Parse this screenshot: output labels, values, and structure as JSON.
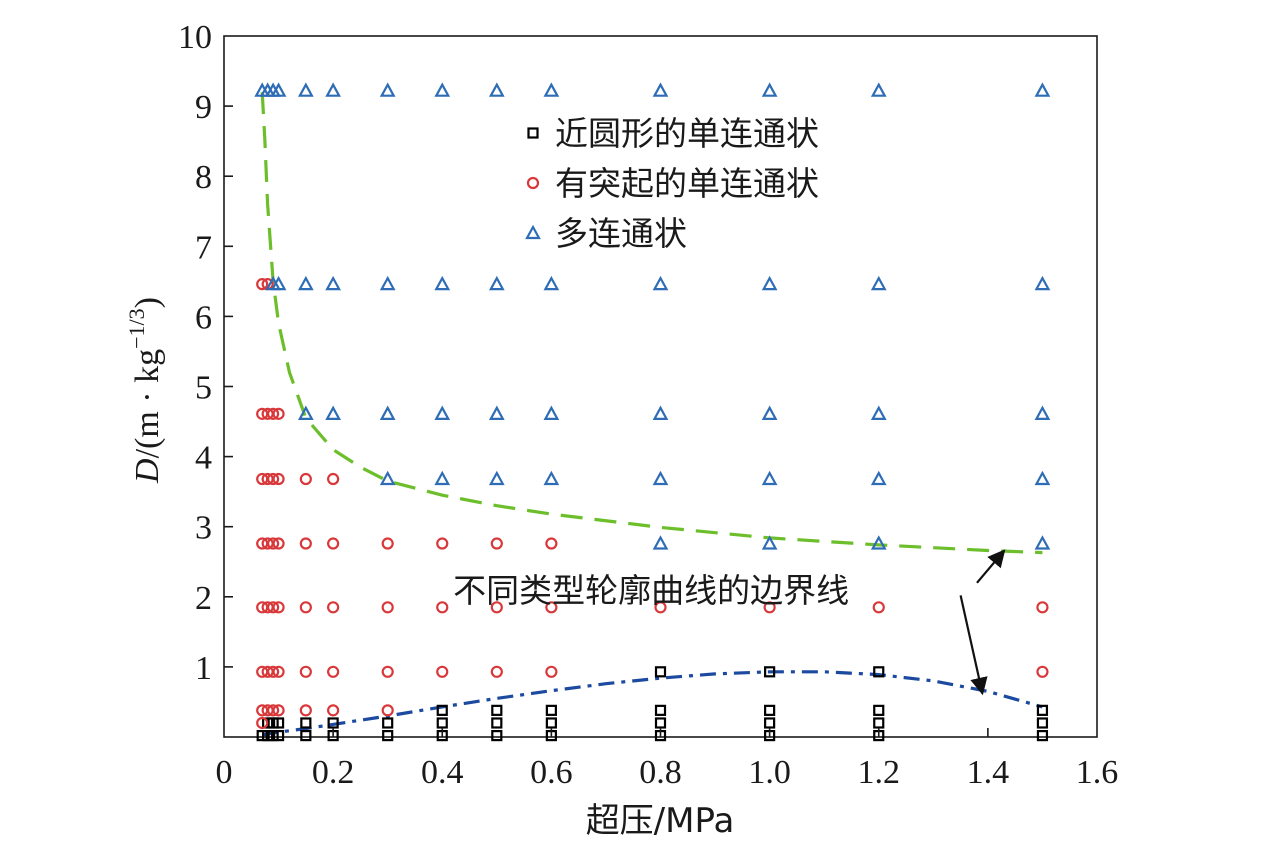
{
  "chart_data": {
    "type": "scatter",
    "xlabel": "超压/MPa",
    "ylabel": {
      "prefix": "D",
      "unit": "/(m · kg",
      "exponent": "−1/3",
      "suffix": ")"
    },
    "xlim": [
      0,
      1.6
    ],
    "ylim": [
      0,
      10
    ],
    "xticks": [
      "0",
      "0.2",
      "0.4",
      "0.6",
      "0.8",
      "1.0",
      "1.2",
      "1.4",
      "1.6"
    ],
    "xtick_values": [
      0,
      0.2,
      0.4,
      0.6,
      0.8,
      1.0,
      1.2,
      1.4,
      1.6
    ],
    "yticks": [
      "1",
      "2",
      "3",
      "4",
      "5",
      "6",
      "7",
      "8",
      "9",
      "10"
    ],
    "ytick_values": [
      1,
      2,
      3,
      4,
      5,
      6,
      7,
      8,
      9,
      10
    ],
    "grid": false,
    "legend_position": "top-center",
    "series": [
      {
        "name": "近圆形的单连通状",
        "marker": "square",
        "color": "#000000",
        "points": [
          [
            0.07,
            0.02
          ],
          [
            0.08,
            0.02
          ],
          [
            0.09,
            0.02
          ],
          [
            0.1,
            0.02
          ],
          [
            0.15,
            0.02
          ],
          [
            0.2,
            0.02
          ],
          [
            0.3,
            0.02
          ],
          [
            0.4,
            0.02
          ],
          [
            0.5,
            0.02
          ],
          [
            0.6,
            0.02
          ],
          [
            0.8,
            0.02
          ],
          [
            1.0,
            0.02
          ],
          [
            1.2,
            0.02
          ],
          [
            1.5,
            0.02
          ],
          [
            0.08,
            0.2
          ],
          [
            0.09,
            0.2
          ],
          [
            0.1,
            0.2
          ],
          [
            0.15,
            0.2
          ],
          [
            0.2,
            0.2
          ],
          [
            0.3,
            0.2
          ],
          [
            0.4,
            0.2
          ],
          [
            0.5,
            0.2
          ],
          [
            0.6,
            0.2
          ],
          [
            0.8,
            0.2
          ],
          [
            1.0,
            0.2
          ],
          [
            1.2,
            0.2
          ],
          [
            1.5,
            0.2
          ],
          [
            0.4,
            0.38
          ],
          [
            0.5,
            0.38
          ],
          [
            0.6,
            0.38
          ],
          [
            0.8,
            0.38
          ],
          [
            1.0,
            0.38
          ],
          [
            1.2,
            0.38
          ],
          [
            1.5,
            0.38
          ],
          [
            0.8,
            0.93
          ],
          [
            1.0,
            0.93
          ],
          [
            1.2,
            0.93
          ]
        ]
      },
      {
        "name": "有突起的单连通状",
        "marker": "circle",
        "color": "#d9383a",
        "points": [
          [
            0.07,
            0.2
          ],
          [
            0.07,
            0.38
          ],
          [
            0.08,
            0.38
          ],
          [
            0.09,
            0.38
          ],
          [
            0.1,
            0.38
          ],
          [
            0.15,
            0.38
          ],
          [
            0.2,
            0.38
          ],
          [
            0.3,
            0.38
          ],
          [
            0.07,
            0.93
          ],
          [
            0.08,
            0.93
          ],
          [
            0.09,
            0.93
          ],
          [
            0.1,
            0.93
          ],
          [
            0.15,
            0.93
          ],
          [
            0.2,
            0.93
          ],
          [
            0.3,
            0.93
          ],
          [
            0.4,
            0.93
          ],
          [
            0.5,
            0.93
          ],
          [
            0.6,
            0.93
          ],
          [
            1.5,
            0.93
          ],
          [
            0.07,
            1.85
          ],
          [
            0.08,
            1.85
          ],
          [
            0.09,
            1.85
          ],
          [
            0.1,
            1.85
          ],
          [
            0.15,
            1.85
          ],
          [
            0.2,
            1.85
          ],
          [
            0.3,
            1.85
          ],
          [
            0.4,
            1.85
          ],
          [
            0.5,
            1.85
          ],
          [
            0.6,
            1.85
          ],
          [
            0.8,
            1.85
          ],
          [
            1.0,
            1.85
          ],
          [
            1.2,
            1.85
          ],
          [
            1.5,
            1.85
          ],
          [
            0.07,
            2.76
          ],
          [
            0.08,
            2.76
          ],
          [
            0.09,
            2.76
          ],
          [
            0.1,
            2.76
          ],
          [
            0.15,
            2.76
          ],
          [
            0.2,
            2.76
          ],
          [
            0.3,
            2.76
          ],
          [
            0.4,
            2.76
          ],
          [
            0.5,
            2.76
          ],
          [
            0.6,
            2.76
          ],
          [
            0.07,
            3.68
          ],
          [
            0.08,
            3.68
          ],
          [
            0.09,
            3.68
          ],
          [
            0.1,
            3.68
          ],
          [
            0.15,
            3.68
          ],
          [
            0.2,
            3.68
          ],
          [
            0.07,
            4.61
          ],
          [
            0.08,
            4.61
          ],
          [
            0.09,
            4.61
          ],
          [
            0.1,
            4.61
          ],
          [
            0.07,
            6.46
          ],
          [
            0.08,
            6.46
          ]
        ]
      },
      {
        "name": "多连通状",
        "marker": "triangle",
        "color": "#2e6db5",
        "points": [
          [
            0.8,
            2.76
          ],
          [
            1.0,
            2.76
          ],
          [
            1.2,
            2.76
          ],
          [
            1.5,
            2.76
          ],
          [
            0.3,
            3.68
          ],
          [
            0.4,
            3.68
          ],
          [
            0.5,
            3.68
          ],
          [
            0.6,
            3.68
          ],
          [
            0.8,
            3.68
          ],
          [
            1.0,
            3.68
          ],
          [
            1.2,
            3.68
          ],
          [
            1.5,
            3.68
          ],
          [
            0.15,
            4.61
          ],
          [
            0.2,
            4.61
          ],
          [
            0.3,
            4.61
          ],
          [
            0.4,
            4.61
          ],
          [
            0.5,
            4.61
          ],
          [
            0.6,
            4.61
          ],
          [
            0.8,
            4.61
          ],
          [
            1.0,
            4.61
          ],
          [
            1.2,
            4.61
          ],
          [
            1.5,
            4.61
          ],
          [
            0.09,
            6.46
          ],
          [
            0.1,
            6.46
          ],
          [
            0.15,
            6.46
          ],
          [
            0.2,
            6.46
          ],
          [
            0.3,
            6.46
          ],
          [
            0.4,
            6.46
          ],
          [
            0.5,
            6.46
          ],
          [
            0.6,
            6.46
          ],
          [
            0.8,
            6.46
          ],
          [
            1.0,
            6.46
          ],
          [
            1.2,
            6.46
          ],
          [
            1.5,
            6.46
          ],
          [
            0.07,
            9.22
          ],
          [
            0.08,
            9.22
          ],
          [
            0.09,
            9.22
          ],
          [
            0.1,
            9.22
          ],
          [
            0.15,
            9.22
          ],
          [
            0.2,
            9.22
          ],
          [
            0.3,
            9.22
          ],
          [
            0.4,
            9.22
          ],
          [
            0.5,
            9.22
          ],
          [
            0.6,
            9.22
          ],
          [
            0.8,
            9.22
          ],
          [
            1.0,
            9.22
          ],
          [
            1.2,
            9.22
          ],
          [
            1.5,
            9.22
          ]
        ]
      }
    ],
    "boundary_lines": [
      {
        "style": "dashed",
        "color": "#6cbf2a",
        "points": [
          [
            0.07,
            9.2
          ],
          [
            0.075,
            8.5
          ],
          [
            0.08,
            7.6
          ],
          [
            0.09,
            6.5
          ],
          [
            0.1,
            5.9
          ],
          [
            0.12,
            5.2
          ],
          [
            0.15,
            4.55
          ],
          [
            0.2,
            4.1
          ],
          [
            0.25,
            3.85
          ],
          [
            0.3,
            3.65
          ],
          [
            0.4,
            3.45
          ],
          [
            0.5,
            3.3
          ],
          [
            0.6,
            3.18
          ],
          [
            0.8,
            2.99
          ],
          [
            1.0,
            2.84
          ],
          [
            1.2,
            2.74
          ],
          [
            1.4,
            2.66
          ],
          [
            1.5,
            2.63
          ]
        ]
      },
      {
        "style": "dash-dot",
        "color": "#1c4aa0",
        "points": [
          [
            0.07,
            0.03
          ],
          [
            0.1,
            0.07
          ],
          [
            0.15,
            0.12
          ],
          [
            0.2,
            0.18
          ],
          [
            0.3,
            0.3
          ],
          [
            0.4,
            0.43
          ],
          [
            0.5,
            0.55
          ],
          [
            0.6,
            0.66
          ],
          [
            0.7,
            0.76
          ],
          [
            0.8,
            0.84
          ],
          [
            0.9,
            0.9
          ],
          [
            1.0,
            0.93
          ],
          [
            1.1,
            0.93
          ],
          [
            1.2,
            0.89
          ],
          [
            1.3,
            0.8
          ],
          [
            1.4,
            0.65
          ],
          [
            1.5,
            0.43
          ]
        ]
      }
    ],
    "annotations": [
      {
        "text": "不同类型轮廓曲线的边界线",
        "label_anchor": [
          0.42,
          2.1
        ],
        "arrows_to": [
          [
            1.43,
            2.66
          ],
          [
            1.39,
            0.62
          ]
        ],
        "arrows_from": [
          [
            1.38,
            2.2
          ],
          [
            1.35,
            2.02
          ]
        ]
      }
    ]
  }
}
